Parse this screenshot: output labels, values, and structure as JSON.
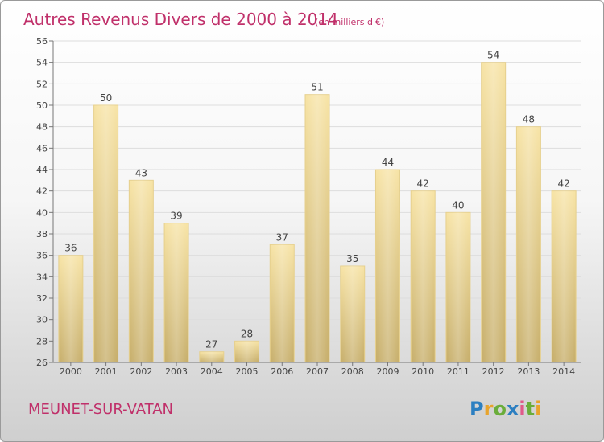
{
  "title": "Autres Revenus Divers de 2000 à 2014",
  "unit": "(en milliers d'€)",
  "location": "MEUNET-SUR-VATAN",
  "brand": {
    "letters": [
      "P",
      "r",
      "o",
      "x",
      "i",
      "t",
      "i"
    ],
    "colors": [
      "#2c7fc1",
      "#e8a42c",
      "#6aad3a",
      "#2c7fc1",
      "#e05a8a",
      "#6aad3a",
      "#e8a42c"
    ]
  },
  "colors": {
    "bar_top": "#f7e3a4",
    "bar_bottom": "#c6ad68",
    "title": "#c0306a"
  },
  "chart_data": {
    "type": "bar",
    "categories": [
      "2000",
      "2001",
      "2002",
      "2003",
      "2004",
      "2005",
      "2006",
      "2007",
      "2008",
      "2009",
      "2010",
      "2011",
      "2012",
      "2013",
      "2014"
    ],
    "values": [
      36,
      50,
      43,
      39,
      27,
      28,
      37,
      51,
      35,
      44,
      42,
      40,
      54,
      48,
      42
    ],
    "ylim": [
      26,
      56
    ],
    "yticks": [
      26,
      28,
      30,
      32,
      34,
      36,
      38,
      40,
      42,
      44,
      46,
      48,
      50,
      52,
      54,
      56
    ],
    "grid": true,
    "title": "Autres Revenus Divers de 2000 à 2014",
    "xlabel": "",
    "ylabel": ""
  }
}
